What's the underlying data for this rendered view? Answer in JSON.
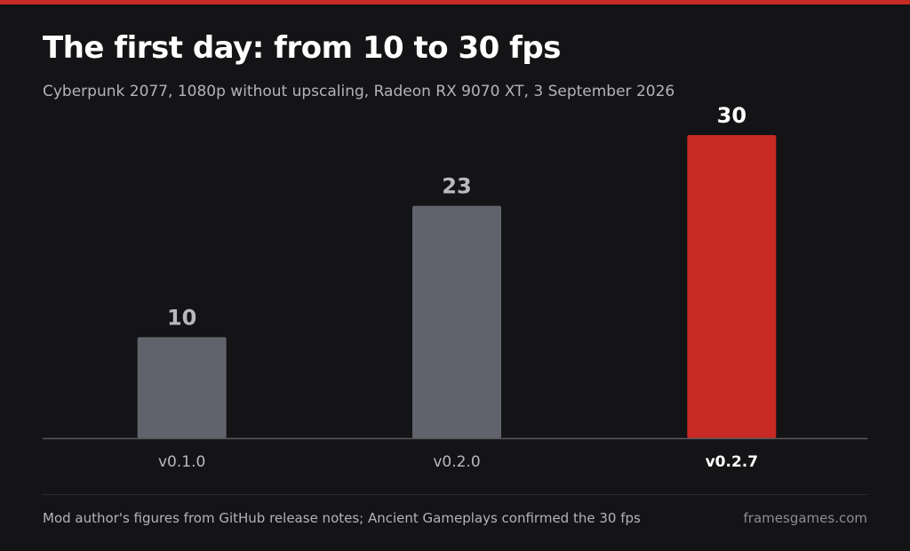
{
  "colors": {
    "background": "#141315",
    "accent": "#c82a24",
    "bar_default": "#60636b",
    "label_default": "#b9b9bd",
    "label_highlight": "#ffffff",
    "axis": "#5a5a5e"
  },
  "footer": {
    "source": "Mod author's figures from GitHub release notes; Ancient Gameplays confirmed the 30 fps",
    "brand": "framesgames.com"
  },
  "chart_data": {
    "type": "bar",
    "title": "The first day: from 10 to 30 fps",
    "subtitle": "Cyberpunk 2077, 1080p without upscaling, Radeon RX 9070 XT, 3 September 2026",
    "categories": [
      "v0.1.0",
      "v0.2.0",
      "v0.2.7"
    ],
    "values": [
      10,
      23,
      30
    ],
    "data_labels": [
      "10",
      "23",
      "30"
    ],
    "highlight": "v0.2.7",
    "xlabel": "",
    "ylabel": "",
    "ylim": [
      0,
      30
    ],
    "grid": false,
    "legend": "none"
  }
}
